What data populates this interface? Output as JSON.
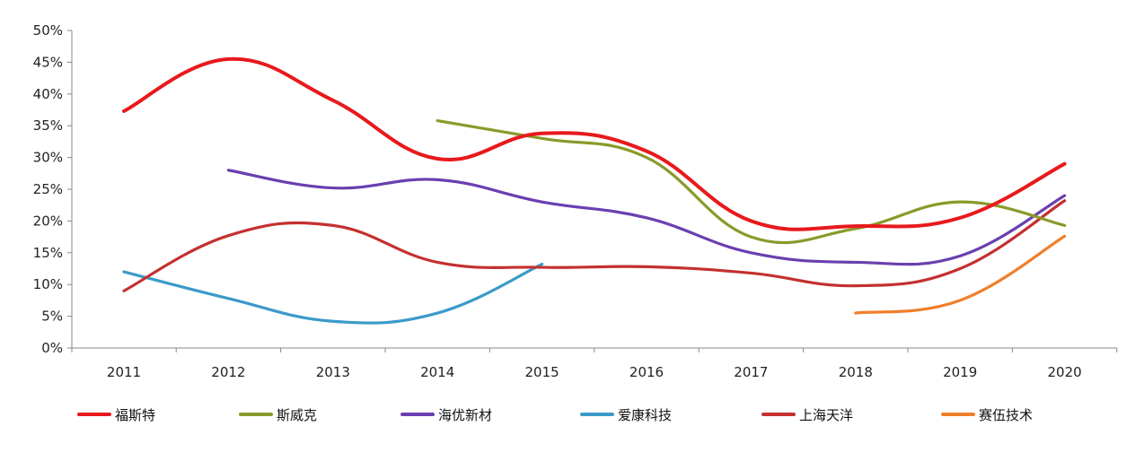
{
  "chart_data": {
    "type": "line",
    "title": "",
    "xlabel": "",
    "ylabel": "",
    "categories": [
      "2011",
      "2012",
      "2013",
      "2014",
      "2015",
      "2016",
      "2017",
      "2018",
      "2019",
      "2020"
    ],
    "ylim": [
      0,
      50
    ],
    "y_ticks": [
      0,
      5,
      10,
      15,
      20,
      25,
      30,
      35,
      40,
      45,
      50
    ],
    "y_tick_labels": [
      "0%",
      "5%",
      "10%",
      "15%",
      "20%",
      "25%",
      "30%",
      "35%",
      "40%",
      "45%",
      "50%"
    ],
    "grid": false,
    "legend_position": "bottom",
    "series": [
      {
        "name": "福斯特",
        "color": "#e8191c",
        "values": [
          37.3,
          45.5,
          39.0,
          29.8,
          33.8,
          31.0,
          20.0,
          19.2,
          20.5,
          29.0
        ]
      },
      {
        "name": "斯威克",
        "color": "#8a9a2a",
        "values": [
          null,
          null,
          null,
          35.8,
          33.0,
          30.0,
          17.5,
          18.8,
          23.0,
          19.3
        ]
      },
      {
        "name": "海优新材",
        "color": "#6a3fb0",
        "values": [
          null,
          28.0,
          25.2,
          26.5,
          23.0,
          20.5,
          15.0,
          13.5,
          14.5,
          24.0
        ]
      },
      {
        "name": "爱康科技",
        "color": "#3a9ac8",
        "values": [
          12.0,
          7.8,
          4.2,
          5.5,
          13.2,
          null,
          null,
          null,
          null,
          null
        ]
      },
      {
        "name": "上海天洋",
        "color": "#c43030",
        "values": [
          9.0,
          17.7,
          19.3,
          13.5,
          12.7,
          12.8,
          11.8,
          9.8,
          12.5,
          23.2
        ]
      },
      {
        "name": "赛伍技术",
        "color": "#f07f2a",
        "values": [
          null,
          null,
          null,
          null,
          null,
          null,
          null,
          5.5,
          7.5,
          17.6
        ]
      }
    ]
  }
}
